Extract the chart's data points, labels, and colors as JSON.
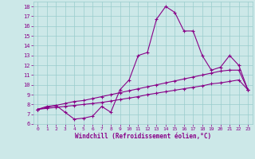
{
  "xlabel": "Windchill (Refroidissement éolien,°C)",
  "background_color": "#cce8e8",
  "grid_color": "#99cccc",
  "line_color": "#880088",
  "xlim": [
    -0.5,
    23.5
  ],
  "ylim": [
    6,
    18.5
  ],
  "xticks": [
    0,
    1,
    2,
    3,
    4,
    5,
    6,
    7,
    8,
    9,
    10,
    11,
    12,
    13,
    14,
    15,
    16,
    17,
    18,
    19,
    20,
    21,
    22,
    23
  ],
  "yticks": [
    6,
    7,
    8,
    9,
    10,
    11,
    12,
    13,
    14,
    15,
    16,
    17,
    18
  ],
  "series1_x": [
    0,
    1,
    2,
    3,
    4,
    5,
    6,
    7,
    8,
    9,
    10,
    11,
    12,
    13,
    14,
    15,
    16,
    17,
    18,
    19,
    20,
    21,
    22,
    23
  ],
  "series1_y": [
    7.5,
    7.8,
    7.9,
    7.2,
    6.5,
    6.6,
    6.8,
    7.8,
    7.2,
    9.5,
    10.5,
    13.0,
    13.3,
    16.7,
    18.0,
    17.4,
    15.5,
    15.5,
    13.0,
    11.5,
    11.8,
    13.0,
    12.0,
    9.5
  ],
  "series2_x": [
    0,
    1,
    2,
    3,
    4,
    5,
    6,
    7,
    8,
    9,
    10,
    11,
    12,
    13,
    14,
    15,
    16,
    17,
    18,
    19,
    20,
    21,
    22,
    23
  ],
  "series2_y": [
    7.5,
    7.7,
    7.9,
    8.1,
    8.3,
    8.4,
    8.6,
    8.8,
    9.0,
    9.2,
    9.4,
    9.6,
    9.8,
    10.0,
    10.2,
    10.4,
    10.6,
    10.8,
    11.0,
    11.2,
    11.4,
    11.5,
    11.5,
    9.5
  ],
  "series3_x": [
    0,
    1,
    2,
    3,
    4,
    5,
    6,
    7,
    8,
    9,
    10,
    11,
    12,
    13,
    14,
    15,
    16,
    17,
    18,
    19,
    20,
    21,
    22,
    23
  ],
  "series3_y": [
    7.5,
    7.6,
    7.7,
    7.8,
    7.9,
    8.0,
    8.1,
    8.2,
    8.35,
    8.5,
    8.65,
    8.8,
    9.0,
    9.15,
    9.3,
    9.45,
    9.6,
    9.75,
    9.9,
    10.1,
    10.2,
    10.35,
    10.5,
    9.5
  ]
}
